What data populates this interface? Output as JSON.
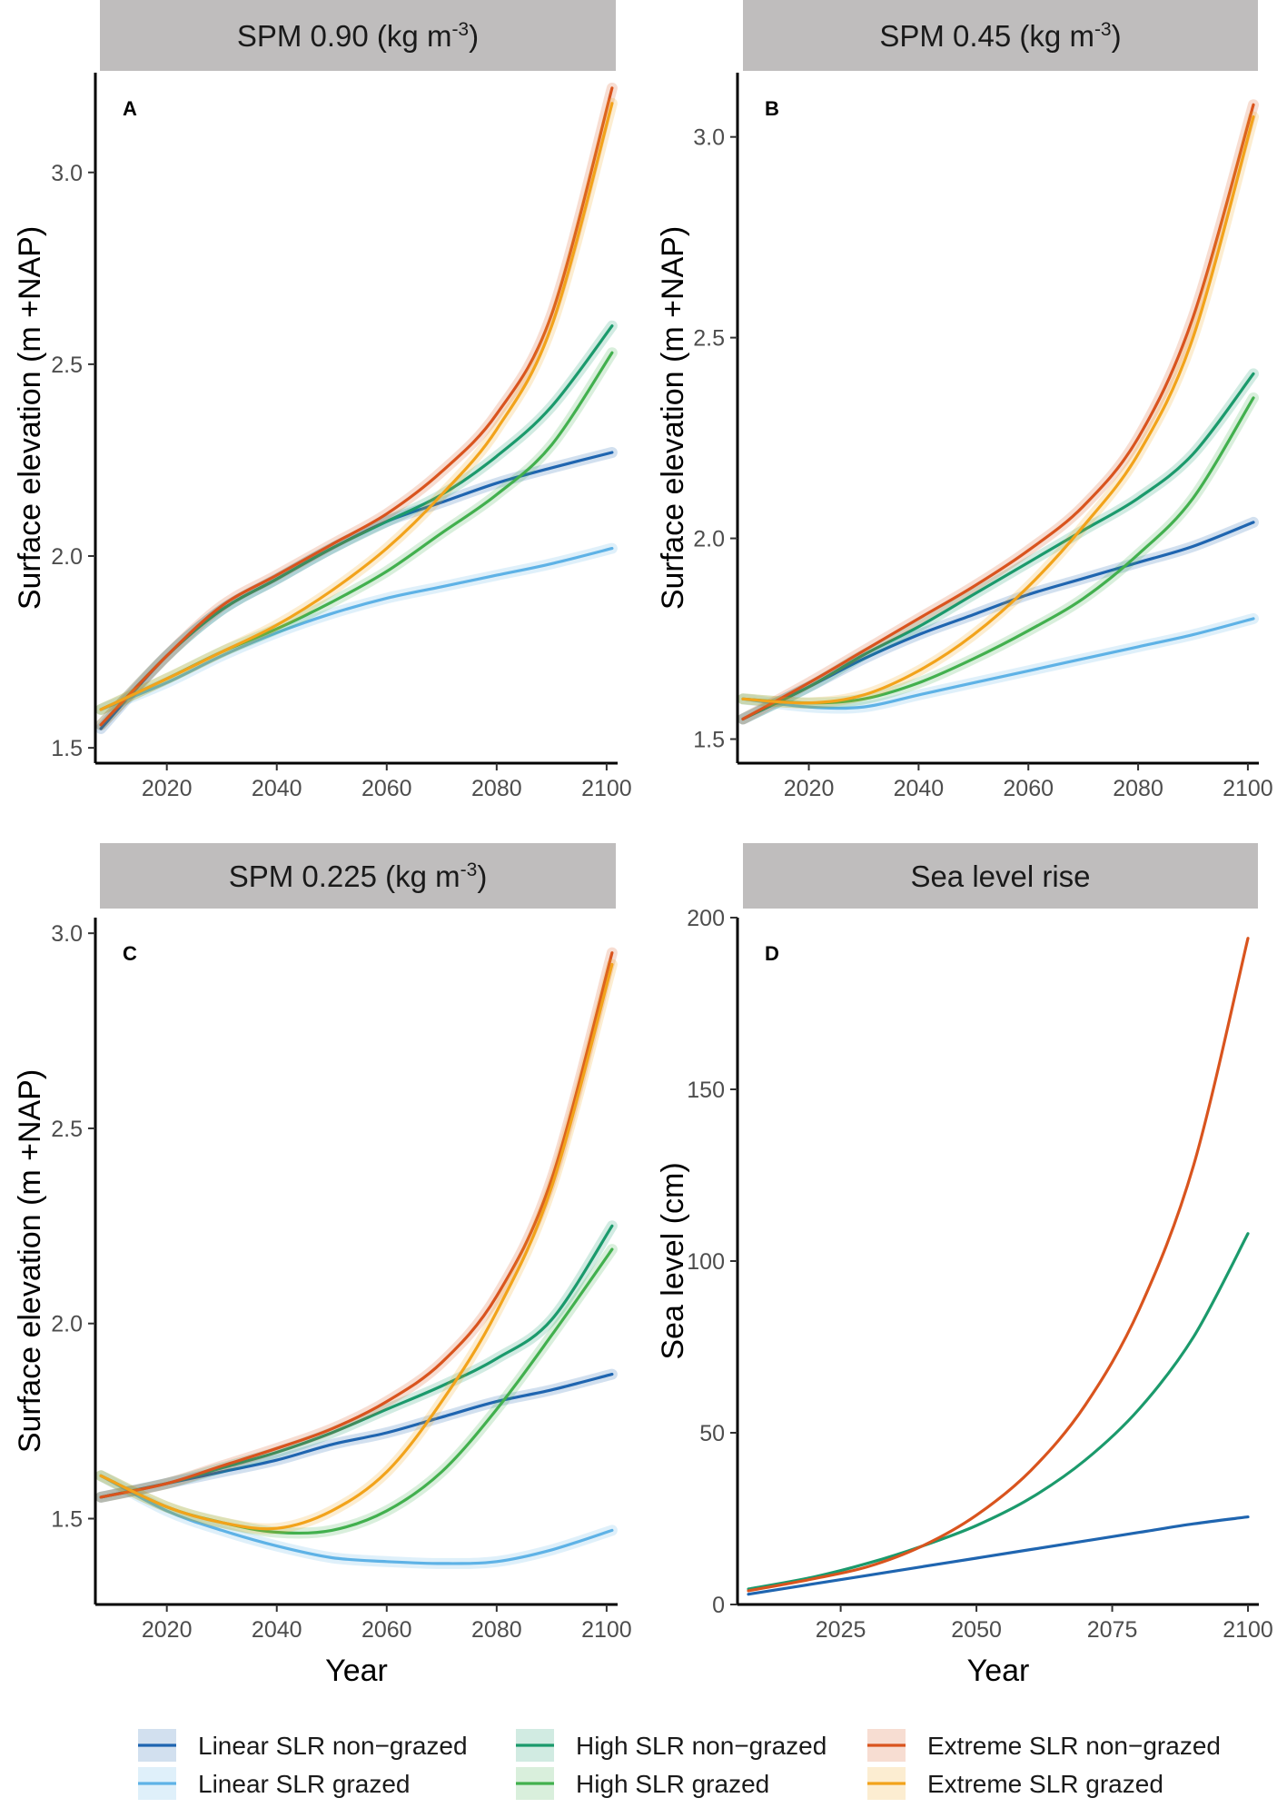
{
  "chart_data": [
    {
      "panel": "A",
      "type": "line",
      "title": "SPM 0.90 (kg m",
      "title_sup": "-3",
      "title_suffix": ")",
      "xlabel": "",
      "ylabel": "Surface elevation (m +NAP)",
      "xlim": [
        2007,
        2102
      ],
      "ylim": [
        1.46,
        3.26
      ],
      "xticks": [
        2020,
        2040,
        2060,
        2080,
        2100
      ],
      "yticks": [
        1.5,
        2.0,
        2.5,
        3.0
      ],
      "x": [
        2008,
        2020,
        2030,
        2040,
        2050,
        2060,
        2070,
        2080,
        2090,
        2101
      ],
      "series": [
        {
          "name": "Linear SLR non-grazed",
          "color": "#1f65b0",
          "values": [
            1.55,
            1.74,
            1.86,
            1.94,
            2.02,
            2.09,
            2.14,
            2.19,
            2.23,
            2.27
          ]
        },
        {
          "name": "Linear SLR grazed",
          "color": "#5eb2e6",
          "values": [
            1.6,
            1.67,
            1.74,
            1.8,
            1.85,
            1.89,
            1.92,
            1.95,
            1.98,
            2.02
          ]
        },
        {
          "name": "High SLR non-grazed",
          "color": "#1b9a6c",
          "values": [
            1.56,
            1.74,
            1.86,
            1.94,
            2.02,
            2.09,
            2.16,
            2.26,
            2.39,
            2.6
          ]
        },
        {
          "name": "High SLR grazed",
          "color": "#42b04e",
          "values": [
            1.6,
            1.68,
            1.75,
            1.81,
            1.88,
            1.96,
            2.06,
            2.16,
            2.29,
            2.53
          ]
        },
        {
          "name": "Extreme SLR non-grazed",
          "color": "#d9541e",
          "values": [
            1.56,
            1.74,
            1.87,
            1.95,
            2.03,
            2.11,
            2.22,
            2.37,
            2.63,
            3.22
          ]
        },
        {
          "name": "Extreme SLR grazed",
          "color": "#f2a31b",
          "values": [
            1.6,
            1.68,
            1.75,
            1.82,
            1.91,
            2.02,
            2.16,
            2.33,
            2.6,
            3.18
          ]
        }
      ]
    },
    {
      "panel": "B",
      "type": "line",
      "title": "SPM 0.45 (kg m",
      "title_sup": "-3",
      "title_suffix": ")",
      "xlabel": "",
      "ylabel": "Surface elevation (m +NAP)",
      "xlim": [
        2007,
        2102
      ],
      "ylim": [
        1.44,
        3.16
      ],
      "xticks": [
        2020,
        2040,
        2060,
        2080,
        2100
      ],
      "yticks": [
        1.5,
        2.0,
        2.5,
        3.0
      ],
      "x": [
        2008,
        2020,
        2030,
        2040,
        2050,
        2060,
        2070,
        2080,
        2090,
        2101
      ],
      "series": [
        {
          "name": "Linear SLR non-grazed",
          "color": "#1f65b0",
          "values": [
            1.55,
            1.63,
            1.7,
            1.76,
            1.81,
            1.86,
            1.9,
            1.94,
            1.98,
            2.04
          ]
        },
        {
          "name": "Linear SLR grazed",
          "color": "#5eb2e6",
          "values": [
            1.6,
            1.58,
            1.58,
            1.61,
            1.64,
            1.67,
            1.7,
            1.73,
            1.76,
            1.8
          ]
        },
        {
          "name": "High SLR non-grazed",
          "color": "#1b9a6c",
          "values": [
            1.55,
            1.63,
            1.71,
            1.78,
            1.86,
            1.94,
            2.02,
            2.1,
            2.21,
            2.41
          ]
        },
        {
          "name": "High SLR grazed",
          "color": "#42b04e",
          "values": [
            1.6,
            1.59,
            1.6,
            1.64,
            1.7,
            1.77,
            1.85,
            1.96,
            2.1,
            2.35
          ]
        },
        {
          "name": "Extreme SLR non-grazed",
          "color": "#d9541e",
          "values": [
            1.55,
            1.64,
            1.72,
            1.8,
            1.88,
            1.97,
            2.08,
            2.25,
            2.55,
            3.08
          ]
        },
        {
          "name": "Extreme SLR grazed",
          "color": "#f2a31b",
          "values": [
            1.6,
            1.59,
            1.61,
            1.67,
            1.76,
            1.88,
            2.03,
            2.21,
            2.5,
            3.05
          ]
        }
      ]
    },
    {
      "panel": "C",
      "type": "line",
      "title": "SPM 0.225 (kg m",
      "title_sup": "-3",
      "title_suffix": ")",
      "xlabel": "Year",
      "ylabel": "Surface elevation (m +NAP)",
      "xlim": [
        2007,
        2102
      ],
      "ylim": [
        1.28,
        3.04
      ],
      "xticks": [
        2020,
        2040,
        2060,
        2080,
        2100
      ],
      "yticks": [
        1.5,
        2.0,
        2.5,
        3.0
      ],
      "x": [
        2008,
        2020,
        2030,
        2040,
        2050,
        2060,
        2070,
        2080,
        2090,
        2101
      ],
      "series": [
        {
          "name": "Linear SLR non-grazed",
          "color": "#1f65b0",
          "values": [
            1.555,
            1.59,
            1.62,
            1.65,
            1.69,
            1.72,
            1.76,
            1.8,
            1.83,
            1.87
          ]
        },
        {
          "name": "Linear SLR grazed",
          "color": "#5eb2e6",
          "values": [
            1.61,
            1.52,
            1.47,
            1.43,
            1.4,
            1.39,
            1.385,
            1.39,
            1.42,
            1.47
          ]
        },
        {
          "name": "High SLR non-grazed",
          "color": "#1b9a6c",
          "values": [
            1.555,
            1.59,
            1.63,
            1.67,
            1.72,
            1.78,
            1.84,
            1.91,
            2.01,
            2.25
          ]
        },
        {
          "name": "High SLR grazed",
          "color": "#42b04e",
          "values": [
            1.61,
            1.53,
            1.49,
            1.465,
            1.47,
            1.52,
            1.62,
            1.78,
            1.97,
            2.19
          ]
        },
        {
          "name": "Extreme SLR non-grazed",
          "color": "#d9541e",
          "values": [
            1.555,
            1.59,
            1.635,
            1.68,
            1.73,
            1.8,
            1.9,
            2.07,
            2.37,
            2.95
          ]
        },
        {
          "name": "Extreme SLR grazed",
          "color": "#f2a31b",
          "values": [
            1.61,
            1.53,
            1.49,
            1.475,
            1.52,
            1.62,
            1.8,
            2.03,
            2.35,
            2.92
          ]
        }
      ]
    },
    {
      "panel": "D",
      "type": "line",
      "title": "Sea level rise",
      "title_sup": "",
      "title_suffix": "",
      "xlabel": "Year",
      "ylabel": "Sea level (cm)",
      "xlim": [
        2006,
        2102
      ],
      "ylim": [
        0,
        200
      ],
      "xticks": [
        2025,
        2050,
        2075,
        2100
      ],
      "yticks": [
        0,
        50,
        100,
        150,
        200
      ],
      "x": [
        2008,
        2020,
        2030,
        2040,
        2050,
        2060,
        2070,
        2080,
        2090,
        2100
      ],
      "series": [
        {
          "name": "Linear SLR",
          "color": "#1f65b0",
          "values": [
            3,
            6,
            8.5,
            11,
            13.5,
            16,
            18.5,
            21,
            23.5,
            25.5
          ]
        },
        {
          "name": "High SLR",
          "color": "#1b9a6c",
          "values": [
            4.5,
            8,
            12,
            17,
            23,
            31,
            42,
            57,
            78,
            108
          ]
        },
        {
          "name": "Extreme SLR",
          "color": "#d9541e",
          "values": [
            4,
            7.5,
            11,
            17,
            26,
            39,
            58,
            86,
            128,
            194
          ]
        }
      ]
    }
  ],
  "legend": [
    {
      "label": "Linear SLR non−grazed",
      "color": "#1f65b0"
    },
    {
      "label": "Linear SLR grazed",
      "color": "#5eb2e6"
    },
    {
      "label": "High SLR non−grazed",
      "color": "#1b9a6c"
    },
    {
      "label": "High SLR grazed",
      "color": "#42b04e"
    },
    {
      "label": "Extreme SLR non−grazed",
      "color": "#d9541e"
    },
    {
      "label": "Extreme SLR grazed",
      "color": "#f2a31b"
    }
  ],
  "colors": {
    "strip_background": "#bfbdbd",
    "axis": "#000000",
    "ribbon_alpha": "0.2"
  }
}
